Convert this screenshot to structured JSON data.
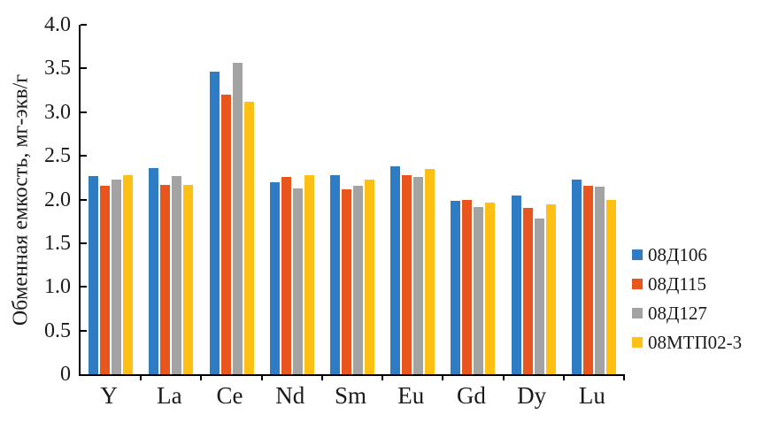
{
  "chart_data": {
    "type": "bar",
    "title": "",
    "ylabel": "Обменная емкость, мг-экв/г",
    "xlabel": "",
    "ylim": [
      0,
      4.0
    ],
    "ytick_step": 0.5,
    "ytick_labels": [
      "0",
      "0.5",
      "1.0",
      "1.5",
      "2.0",
      "2.5",
      "3.0",
      "3.5",
      "4.0"
    ],
    "grid": "off",
    "legend_position": "right",
    "categories": [
      "Y",
      "La",
      "Ce",
      "Nd",
      "Sm",
      "Eu",
      "Gd",
      "Dy",
      "Lu"
    ],
    "series": [
      {
        "name": "08Д106",
        "color": "#2E7CC3",
        "values": [
          2.27,
          2.36,
          3.46,
          2.2,
          2.28,
          2.38,
          1.98,
          2.05,
          2.23
        ]
      },
      {
        "name": "08Д115",
        "color": "#E8561E",
        "values": [
          2.16,
          2.17,
          3.2,
          2.26,
          2.12,
          2.28,
          2.0,
          1.9,
          2.16
        ]
      },
      {
        "name": "08Д127",
        "color": "#A3A3A3",
        "values": [
          2.23,
          2.27,
          3.56,
          2.13,
          2.16,
          2.26,
          1.91,
          1.78,
          2.15
        ]
      },
      {
        "name": "08МТП02-3",
        "color": "#FFC013",
        "values": [
          2.28,
          2.17,
          3.12,
          2.28,
          2.23,
          2.35,
          1.96,
          1.94,
          2.0
        ]
      }
    ],
    "axis_color": "#000000"
  }
}
